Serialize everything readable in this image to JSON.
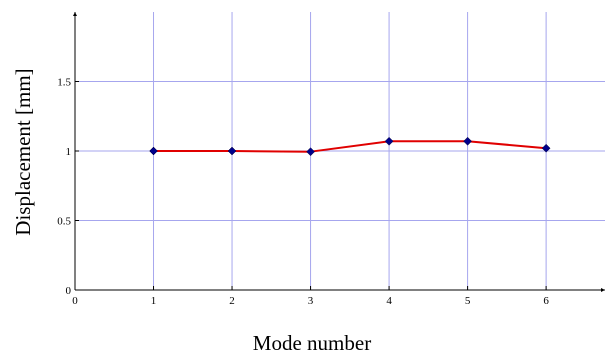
{
  "chart_data": {
    "type": "line",
    "title": "",
    "xlabel": "Mode number",
    "ylabel": "Displacement [mm]",
    "x": [
      1,
      2,
      3,
      4,
      5,
      6
    ],
    "series": [
      {
        "values": [
          1.0,
          1.0,
          0.995,
          1.07,
          1.07,
          1.02
        ]
      }
    ],
    "xlim": [
      0,
      6.75
    ],
    "ylim": [
      0,
      2
    ],
    "xticks": [
      "0",
      "1",
      "2",
      "3",
      "4",
      "5",
      "6"
    ],
    "yticks": [
      "0",
      "0.5",
      "1",
      "1.5"
    ],
    "grid": true,
    "line_color": "#e00000",
    "marker_color": "#00008b",
    "grid_color": "#a6a6ee"
  }
}
